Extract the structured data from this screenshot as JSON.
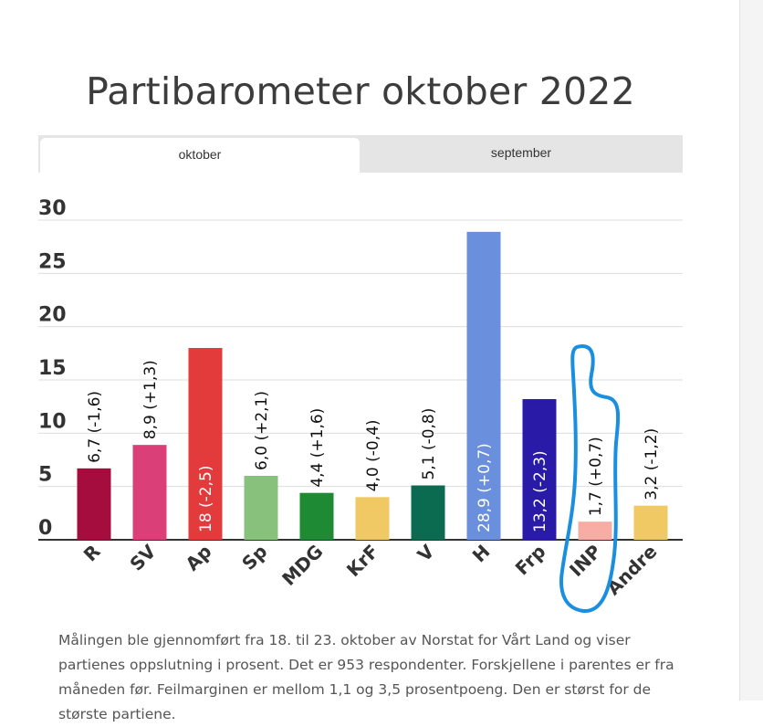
{
  "title": "Partibarometer oktober 2022",
  "tabs": [
    {
      "label": "oktober",
      "active": true
    },
    {
      "label": "september",
      "active": false
    }
  ],
  "caption": "Målingen ble gjennomført fra 18. til 23. oktober av Norstat for Vårt Land og viser partienes oppslutning i prosent. Det er 953 respondenter. Forskjellene i parentes er fra måneden før. Feilmarginen er mellom 1,1 og 3,5 prosentpoeng. Den er størst for de største partiene.",
  "annotation": {
    "type": "hand-drawn-outline",
    "color": "#1a8fe0",
    "target": "INP"
  },
  "chart_data": {
    "type": "bar",
    "title": "Partibarometer oktober 2022",
    "xlabel": "",
    "ylabel": "",
    "ylim": [
      0,
      30
    ],
    "yticks": [
      0,
      5,
      10,
      15,
      20,
      25,
      30
    ],
    "grid": true,
    "categories": [
      "R",
      "SV",
      "Ap",
      "Sp",
      "MDG",
      "KrF",
      "V",
      "H",
      "Frp",
      "INP",
      "Andre"
    ],
    "values": [
      6.7,
      8.9,
      18,
      6.0,
      4.4,
      4.0,
      5.1,
      28.9,
      13.2,
      1.7,
      3.2
    ],
    "labels": [
      "6,7 (-1,6)",
      "8,9 (+1,3)",
      "18 (-2,5)",
      "6,0 (+2,1)",
      "4,4 (+1,6)",
      "4,0 (-0,4)",
      "5,1 (-0,8)",
      "28,9 (+0,7)",
      "13,2 (-2,3)",
      "1,7 (+0,7)",
      "3,2 (-1,2)"
    ],
    "colors": [
      "#a50d3e",
      "#da3f78",
      "#e33a3b",
      "#87c17b",
      "#1e8a34",
      "#f0c964",
      "#0b6b51",
      "#6a8fdc",
      "#2a1aa8",
      "#f7ada4",
      "#f0c964"
    ]
  }
}
